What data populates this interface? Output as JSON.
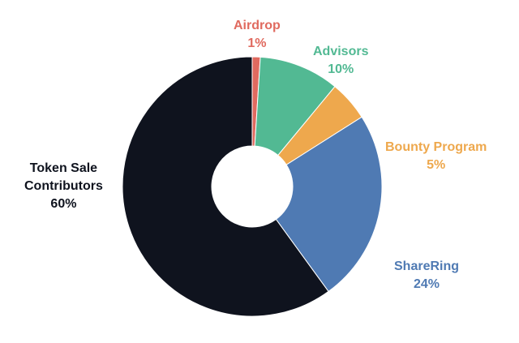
{
  "chart_data": {
    "type": "pie",
    "donut": true,
    "slices": [
      {
        "name": "Airdrop",
        "label": "Airdrop",
        "percent_label": "1%",
        "value": 1,
        "color": "#e06a5f"
      },
      {
        "name": "Advisors",
        "label": "Advisors",
        "percent_label": "10%",
        "value": 10,
        "color": "#52b993"
      },
      {
        "name": "Bounty Program",
        "label": "Bounty Program",
        "percent_label": "5%",
        "value": 5,
        "color": "#eea84d"
      },
      {
        "name": "ShareRing",
        "label": "ShareRing",
        "percent_label": "24%",
        "value": 24,
        "color": "#4f7ab3"
      },
      {
        "name": "Token Sale Contributors",
        "label_lines": [
          "Token Sale",
          "Contributors"
        ],
        "percent_label": "60%",
        "value": 60,
        "color": "#0f131e"
      }
    ]
  }
}
